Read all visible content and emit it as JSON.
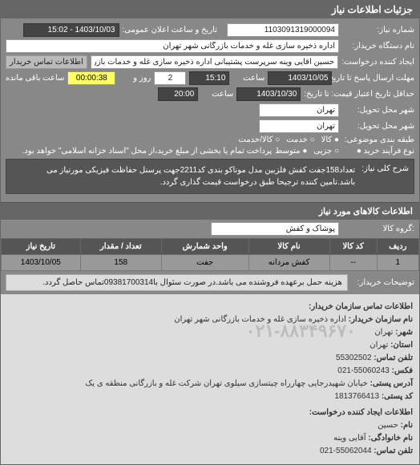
{
  "header": {
    "title": "جزئیات اطلاعات نیاز"
  },
  "fields": {
    "need_no_label": "شماره نیاز:",
    "need_no": "1103091319000094",
    "announce_label": "تاریخ و ساعت اعلان عمومی:",
    "announce_value": "1403/10/03 - 15:02",
    "dev_name_label": "نام دستگاه خریدار:",
    "dev_name": "اداره ذخیره سازی غله و خدمات بازرگانی شهر تهران",
    "creator_label": "ایجاد کننده درخواست:",
    "creator": "حسین آقایی وینه سرپرست پشتیبانی اداره ذخیره سازی غله و خدمات بازرگانی",
    "creator_btn": "اطلاعات تماس خریدار",
    "deadline_send_label": "مهلت ارسال پاسخ تا تاریخ:",
    "deadline_date": "1403/10/05",
    "time_label": "ساعت",
    "deadline_time": "15:10",
    "days_label": "روز و",
    "days_value": "2",
    "remain_time": "00:00:38",
    "remain_label": "ساعت باقی مانده",
    "price_valid_label": "حداقل تاریخ اعتبار قیمت: تا تاریخ:",
    "price_valid_date": "1403/10/30",
    "price_valid_time": "20:00",
    "city_label": "شهر محل تحویل:",
    "city": "تهران",
    "region_label": "شهر محل تحویل:",
    "region": "تهران",
    "currency_label": "طبقه بندی موضوعی:",
    "process_label": "نوع فرآیند خرید ●",
    "process_text": "پرداخت تمام یا بخشی از مبلغ خرید،از محل \"اسناد خزانه اسلامی\" خواهد بود.",
    "radios": {
      "r1": "● کالا",
      "r2": "○ خدمت",
      "r3": "○ کالا/خدمت",
      "r4": "○ جزیی",
      "r5": "● متوسط"
    }
  },
  "description": {
    "label": "شرح کلی نیاز:",
    "text": "تعداد158جفت کفش فلزبین مدل موناکو بندی کد2211جهت پرسنل حفاظت فیزیکی مورنیاز می باشد.تامین کننده ترجیحا طبق درخواست قیمت گذاری گردد."
  },
  "goods_section": {
    "title": "اطلاعات کالاهای مورد نیاز",
    "group_label": ":گروه کالا",
    "group_value": "پوشاک و کفش"
  },
  "table": {
    "headers": [
      "ردیف",
      "کد کالا",
      "نام کالا",
      "واحد شمارش",
      "تعداد / مقدار",
      "تاریخ نیاز"
    ],
    "rows": [
      [
        "1",
        "--",
        "کفش مردانه",
        "جفت",
        "158",
        "1403/10/05"
      ]
    ]
  },
  "buyer_note": {
    "label": "توضیحات خریدار:",
    "text": "هزینه حمل برعهده فروشنده می باشد.در صورت سئوال با09381700314تماس حاصل گردد."
  },
  "watermark": "۰۲۱-۸۸۳۴۹۶۷۰",
  "contact": {
    "title": "اطلاعات تماس سازمان خریدار:",
    "org_label": "نام سازمان خریدار:",
    "org": "اداره ذخیره سازی غله و خدمات بازرگانی شهر تهران",
    "city_label": "شهر:",
    "city": "تهران",
    "province_label": "استان:",
    "province": "تهران",
    "phone_label": "تلفن تماس:",
    "phone": "55302502",
    "fax_label": "فکس:",
    "fax": "55060243-021",
    "postal_label": "آدرس پستی:",
    "postal": "خیابان شهیدرجایی چهارراه چیتسازی سیلوی تهران شرکت غله و بازرگانی منطقه ی یک",
    "postcode_label": "کد پستی:",
    "postcode": "1813766413",
    "creator_title": "اطلاعات ایجاد کننده درخواست:",
    "name_label": "نام:",
    "name": "حسین",
    "family_label": "نام خانوادگی:",
    "family": "آقایی وینه",
    "cphone_label": "تلفن تماس:",
    "cphone": "55062044-021"
  }
}
